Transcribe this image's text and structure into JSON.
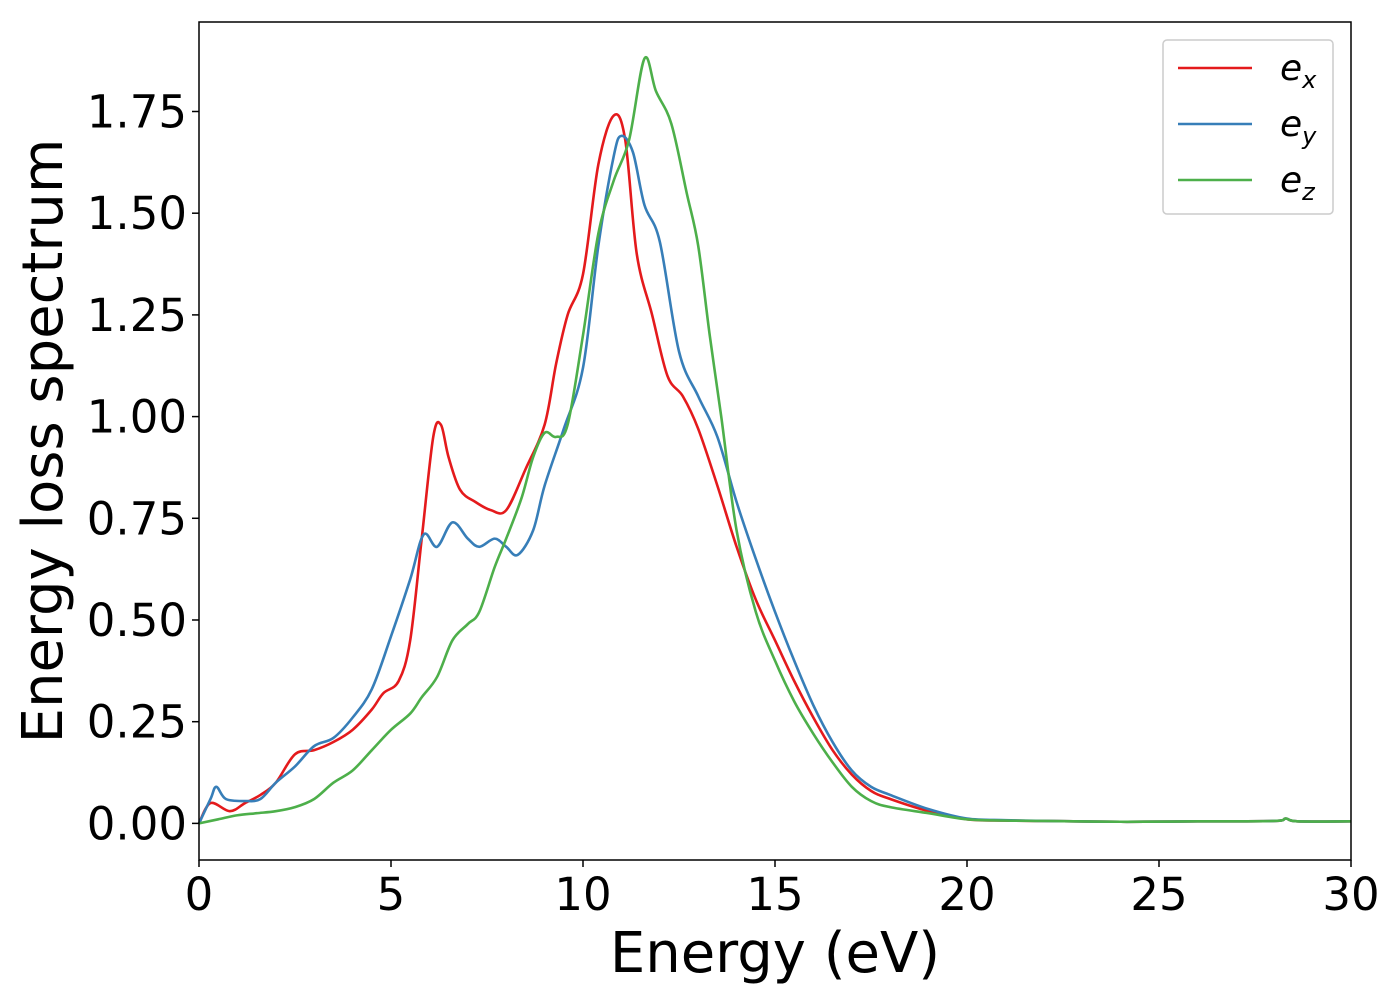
{
  "chart_data": {
    "type": "line",
    "title": "",
    "xlabel": "Energy (eV)",
    "ylabel": "Energy loss spectrum",
    "xlim": [
      0,
      30
    ],
    "ylim": [
      -0.09,
      1.97
    ],
    "xticks": [
      0,
      5,
      10,
      15,
      20,
      25,
      30
    ],
    "xtick_labels": [
      "0",
      "5",
      "10",
      "15",
      "20",
      "25",
      "30"
    ],
    "yticks": [
      0,
      0.25,
      0.5,
      0.75,
      1.0,
      1.25,
      1.5,
      1.75
    ],
    "ytick_labels": [
      "0.00",
      "0.25",
      "0.50",
      "0.75",
      "1.00",
      "1.25",
      "1.50",
      "1.75"
    ],
    "grid": false,
    "legend_position": "top-right",
    "series": [
      {
        "name": "e_x",
        "legend_base": "e",
        "legend_sub": "x",
        "color": "#e41a1c",
        "x": [
          0,
          0.3,
          0.8,
          1.2,
          1.6,
          2.0,
          2.5,
          3.0,
          3.5,
          4.0,
          4.5,
          4.8,
          5.2,
          5.5,
          5.8,
          6.1,
          6.3,
          6.5,
          6.8,
          7.2,
          7.6,
          8.0,
          8.5,
          9.0,
          9.3,
          9.6,
          10.0,
          10.4,
          10.8,
          11.1,
          11.4,
          11.8,
          12.2,
          12.6,
          13.0,
          13.5,
          14.0,
          14.5,
          15.0,
          15.5,
          16.0,
          16.5,
          17.0,
          17.5,
          18.0,
          19.0,
          20.0,
          21.0,
          22.0,
          24.0,
          26.0,
          28.0,
          28.3,
          28.6,
          30.0
        ],
        "y": [
          0.0,
          0.05,
          0.03,
          0.05,
          0.07,
          0.1,
          0.17,
          0.18,
          0.2,
          0.23,
          0.28,
          0.32,
          0.35,
          0.45,
          0.7,
          0.95,
          0.98,
          0.9,
          0.82,
          0.79,
          0.77,
          0.77,
          0.87,
          0.98,
          1.13,
          1.25,
          1.35,
          1.62,
          1.74,
          1.68,
          1.4,
          1.25,
          1.1,
          1.05,
          0.97,
          0.83,
          0.68,
          0.55,
          0.45,
          0.35,
          0.26,
          0.18,
          0.12,
          0.08,
          0.06,
          0.03,
          0.01,
          0.007,
          0.006,
          0.004,
          0.005,
          0.006,
          0.012,
          0.005,
          0.005
        ]
      },
      {
        "name": "e_y",
        "legend_base": "e",
        "legend_sub": "y",
        "color": "#377eb8",
        "x": [
          0,
          0.3,
          0.45,
          0.7,
          1.2,
          1.6,
          2.0,
          2.5,
          3.0,
          3.5,
          4.0,
          4.5,
          5.0,
          5.5,
          5.85,
          6.2,
          6.6,
          7.0,
          7.3,
          7.7,
          8.0,
          8.3,
          8.7,
          9.0,
          9.5,
          10.0,
          10.4,
          10.8,
          11.0,
          11.3,
          11.6,
          12.0,
          12.5,
          13.0,
          13.5,
          14.0,
          14.5,
          15.0,
          15.5,
          16.0,
          16.5,
          17.0,
          17.5,
          18.0,
          19.0,
          20.0,
          21.0,
          22.0,
          24.0,
          26.0,
          28.0,
          28.3,
          28.6,
          30.0
        ],
        "y": [
          0.0,
          0.06,
          0.09,
          0.06,
          0.055,
          0.06,
          0.1,
          0.14,
          0.19,
          0.21,
          0.26,
          0.33,
          0.46,
          0.6,
          0.71,
          0.68,
          0.74,
          0.7,
          0.68,
          0.7,
          0.68,
          0.66,
          0.72,
          0.83,
          0.97,
          1.12,
          1.42,
          1.64,
          1.69,
          1.65,
          1.52,
          1.43,
          1.16,
          1.05,
          0.95,
          0.79,
          0.65,
          0.52,
          0.4,
          0.29,
          0.2,
          0.13,
          0.09,
          0.07,
          0.035,
          0.012,
          0.008,
          0.006,
          0.004,
          0.005,
          0.006,
          0.012,
          0.005,
          0.005
        ]
      },
      {
        "name": "e_z",
        "legend_base": "e",
        "legend_sub": "z",
        "color": "#4daf4a",
        "x": [
          0,
          0.5,
          1.0,
          1.5,
          2.0,
          2.5,
          3.0,
          3.5,
          4.0,
          4.5,
          5.0,
          5.5,
          5.8,
          6.2,
          6.6,
          7.0,
          7.3,
          7.7,
          8.0,
          8.4,
          8.7,
          9.0,
          9.3,
          9.6,
          10.0,
          10.4,
          10.8,
          11.2,
          11.6,
          11.9,
          12.3,
          12.7,
          13.0,
          13.3,
          13.6,
          14.0,
          14.5,
          15.0,
          15.5,
          16.0,
          16.5,
          17.0,
          17.5,
          18.0,
          19.0,
          20.0,
          21.0,
          22.0,
          24.0,
          26.0,
          28.0,
          28.3,
          28.6,
          30.0
        ],
        "y": [
          0.0,
          0.01,
          0.02,
          0.025,
          0.03,
          0.04,
          0.06,
          0.1,
          0.13,
          0.18,
          0.23,
          0.27,
          0.31,
          0.36,
          0.45,
          0.49,
          0.52,
          0.63,
          0.7,
          0.8,
          0.9,
          0.96,
          0.95,
          0.98,
          1.2,
          1.45,
          1.58,
          1.68,
          1.88,
          1.8,
          1.72,
          1.55,
          1.42,
          1.2,
          1.0,
          0.72,
          0.52,
          0.4,
          0.3,
          0.22,
          0.15,
          0.09,
          0.055,
          0.04,
          0.025,
          0.01,
          0.007,
          0.006,
          0.004,
          0.005,
          0.006,
          0.012,
          0.005,
          0.005
        ]
      }
    ]
  }
}
